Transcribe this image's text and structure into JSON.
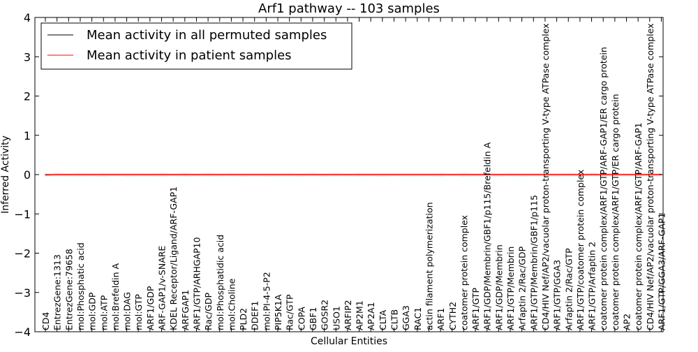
{
  "chart_data": {
    "type": "line",
    "title": "Arf1 pathway -- 103 samples",
    "xlabel": "Cellular Entities",
    "ylabel": "Inferred Activity",
    "ylim": [
      -4,
      4
    ],
    "yticks": [
      "4",
      "3",
      "2",
      "1",
      "0",
      "−1",
      "−2",
      "−3",
      "−4"
    ],
    "legend_position": "top-left",
    "grid": false,
    "categories": [
      "CD4",
      "EntrezGene:1313",
      "EntrezGene:79658",
      "mol:Phosphatic acid",
      "mol:GDP",
      "mol:ATP",
      "mol:Brefeldin A",
      "mol:DAG",
      "mol:GTP",
      "ARF1/GDP",
      "ARF-GAP1/v-SNARE",
      "KDEL Receptor/Ligand/ARF-GAP1",
      "ARFGAP1",
      "ARF1/GTP/ARHGAP10",
      "Rac/GDP",
      "mol:Phosphatidic acid",
      "mol:Choline",
      "PLD2",
      "DDEF1",
      "mol:PI-4-5-P2",
      "PIP5K1A",
      "Rac/GTP",
      "COPA",
      "GBF1",
      "GOSR2",
      "USO1",
      "ARFIP2",
      "AP2M1",
      "AP2A1",
      "CLTA",
      "CLTB",
      "GGA3",
      "RAC1",
      "actin filament polymerization",
      "ARF1",
      "CYTH2",
      "coatomer protein complex",
      "ARF1/GTP",
      "ARF1/GDP/Membrin/GBF1/p115/Brefeldin A",
      "ARF1/GDP/Membrin",
      "ARF1/GTP/Membrin",
      "Arfaptin 2/Rac/GDP",
      "ARF1/GTP/Membrin/GBF1/p115",
      "CD4/HIV Nef/AP2/vacuolar proton-transporting V-type ATPase complex",
      "ARF1/GTP/GGA3",
      "Arfaptin 2/Rac/GTP",
      "ARF1/GTP/coatomer protein complex",
      "ARF1/GTP/Arfaptin 2",
      "coatomer protein complex/ARF1/GTP/ARF-GAP1/ER cargo protein",
      "coatomer protein complex/ARF1/GTP/ER cargo protein",
      "AP2",
      "coatomer protein complex/ARF1/GTP/ARF-GAP1",
      "CD4/HIV Nef/AP2/vacuolar proton-transporting V-type ATPase complex",
      "ARF1/GTP/GGA3/ARF-GAP1"
    ],
    "series": [
      {
        "name": "Mean activity in all permuted samples",
        "color": "#000000",
        "values": [
          0,
          0,
          0,
          0,
          0,
          0,
          0,
          0,
          0,
          0,
          0,
          0,
          0,
          0,
          0,
          0,
          0,
          0,
          0,
          0,
          0,
          0,
          0,
          0,
          0,
          0,
          0,
          0,
          0,
          0,
          0,
          0,
          0,
          0,
          0,
          0,
          0,
          0,
          0,
          0,
          0,
          0,
          0,
          0,
          0,
          0,
          0,
          0,
          0,
          0,
          0,
          0,
          0,
          0
        ]
      },
      {
        "name": "Mean activity in patient samples",
        "color": "#ff0000",
        "values": [
          -0.01,
          0,
          0,
          0,
          0,
          0,
          0,
          0,
          0,
          0,
          0,
          0,
          0,
          0,
          0,
          0,
          0,
          0,
          0,
          0,
          0,
          0,
          0,
          0,
          0,
          0,
          0,
          0,
          0,
          0,
          0,
          0,
          0,
          0,
          0,
          0,
          0,
          0,
          0,
          0,
          0,
          0,
          0,
          0,
          0,
          0,
          0,
          0,
          0,
          0,
          0,
          0,
          0,
          0
        ]
      }
    ]
  }
}
